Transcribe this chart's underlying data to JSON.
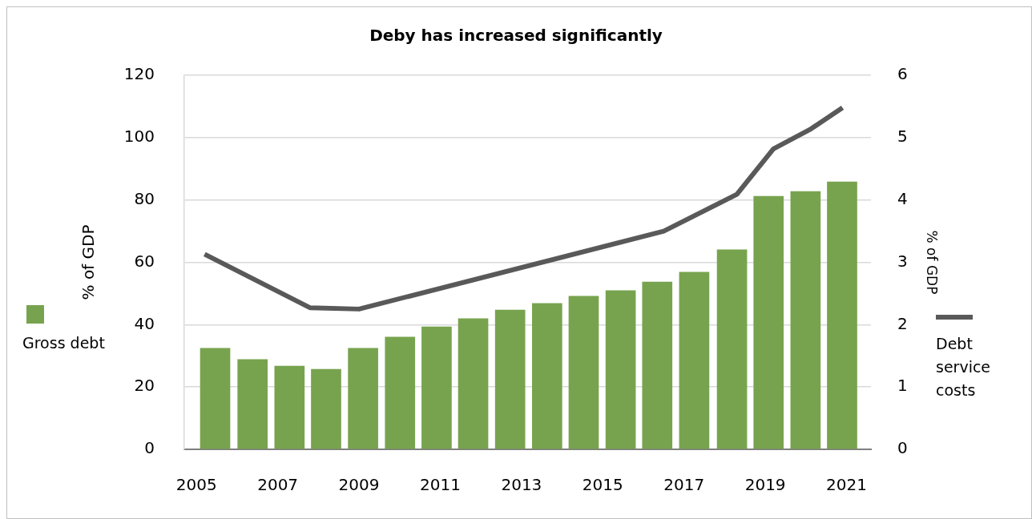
{
  "chart_data": {
    "type": "bar",
    "title": "Deby has increased significantly",
    "ylabel": "% of GDP",
    "y2label": "% of GDP",
    "xlim": [
      2004.7,
      2021.6
    ],
    "xticks": [
      2005,
      2007,
      2009,
      2011,
      2013,
      2015,
      2017,
      2019,
      2021
    ],
    "ylim": [
      0,
      120
    ],
    "yticks": [
      0,
      20,
      40,
      60,
      80,
      100,
      120
    ],
    "y2lim": [
      0,
      6
    ],
    "y2ticks": [
      0,
      1,
      2,
      3,
      4,
      5,
      6
    ],
    "grid": "y",
    "legend": "left",
    "marker": "none",
    "series": [
      {
        "name": "Gross debt",
        "color": "#77a34e",
        "x": [
          2005.46,
          2006.38,
          2007.29,
          2008.19,
          2009.1,
          2010.01,
          2010.91,
          2011.81,
          2012.72,
          2013.63,
          2014.53,
          2015.44,
          2016.34,
          2017.25,
          2018.18,
          2019.08,
          2019.99,
          2020.89
        ],
        "values": [
          32.4,
          28.8,
          26.7,
          25.7,
          32.4,
          36.0,
          39.3,
          41.9,
          44.7,
          46.8,
          49.1,
          50.9,
          53.7,
          56.8,
          64.0,
          81.2,
          82.7,
          85.8
        ]
      },
      {
        "name": "Debt service costs",
        "type": "line",
        "axis": "y2",
        "color": "#595959",
        "line_style": "solid",
        "x": [
          2005.2,
          2007.8,
          2009.0,
          2016.5,
          2018.3,
          2019.2,
          2020.1,
          2020.9
        ],
        "values": [
          3.13,
          2.27,
          2.25,
          3.5,
          4.09,
          4.82,
          5.13,
          5.48
        ]
      }
    ]
  }
}
